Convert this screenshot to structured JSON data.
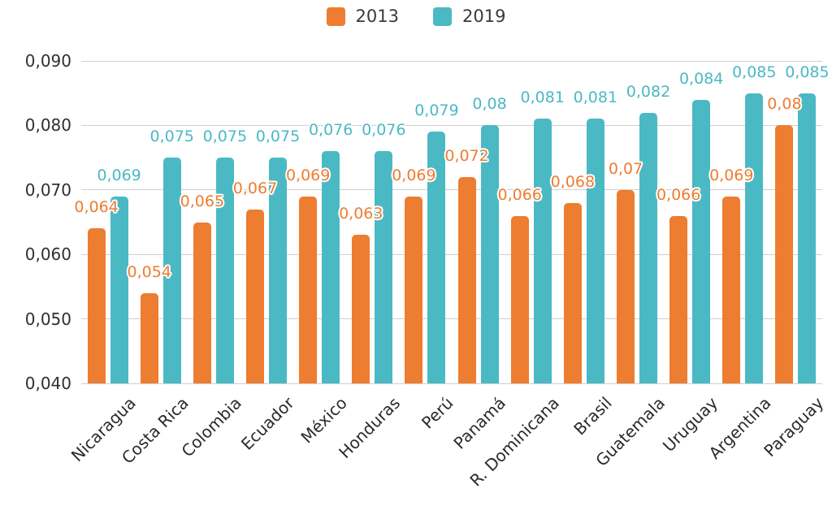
{
  "colors": {
    "background": "#ffffff",
    "grid": "#cfcfcf",
    "axis_text": "#2f2f2f",
    "series_2013": "#ED7D31",
    "series_2019": "#4BB9C4"
  },
  "chart_data": {
    "type": "bar",
    "title": "",
    "xlabel": "",
    "ylabel": "",
    "legend_position": "top",
    "grid": true,
    "decimal_separator": ",",
    "ylim": [
      0.04,
      0.09
    ],
    "yticks": [
      {
        "value": 0.04,
        "label": "0,040"
      },
      {
        "value": 0.05,
        "label": "0,050"
      },
      {
        "value": 0.06,
        "label": "0,060"
      },
      {
        "value": 0.07,
        "label": "0,070"
      },
      {
        "value": 0.08,
        "label": "0,080"
      },
      {
        "value": 0.09,
        "label": "0,090"
      }
    ],
    "categories": [
      "Nicaragua",
      "Costa Rica",
      "Colombia",
      "Ecuador",
      "México",
      "Honduras",
      "Perú",
      "Panamá",
      "R. Dominicana",
      "Brasil",
      "Guatemala",
      "Uruguay",
      "Argentina",
      "Paraguay"
    ],
    "series": [
      {
        "name": "2013",
        "color": "#ED7D31",
        "values": [
          0.064,
          0.054,
          0.065,
          0.067,
          0.069,
          0.063,
          0.069,
          0.072,
          0.066,
          0.068,
          0.07,
          0.066,
          0.069,
          0.08
        ],
        "value_labels": [
          "0,064",
          "0,054",
          "0,065",
          "0,067",
          "0,069",
          "0,063",
          "0,069",
          "0,072",
          "0,066",
          "0,068",
          "0,07",
          "0,066",
          "0,069",
          "0,08"
        ]
      },
      {
        "name": "2019",
        "color": "#4BB9C4",
        "values": [
          0.069,
          0.075,
          0.075,
          0.075,
          0.076,
          0.076,
          0.079,
          0.08,
          0.081,
          0.081,
          0.082,
          0.084,
          0.085,
          0.085
        ],
        "value_labels": [
          "0,069",
          "0,075",
          "0,075",
          "0,075",
          "0,076",
          "0,076",
          "0,079",
          "0,08",
          "0,081",
          "0,081",
          "0,082",
          "0,084",
          "0,085",
          "0,085"
        ]
      }
    ]
  }
}
